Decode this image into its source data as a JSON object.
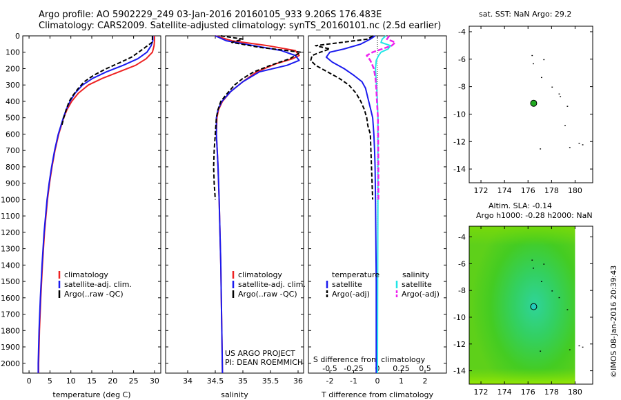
{
  "header": {
    "line1": "Argo profile: AO 5902229_249 03-Jan-2016 20160105_933 9.206S 176.483E",
    "line2": "Climatology: CARS2009. Satellite-adjusted climatology: synTS_20160101.nc (2.5d earlier)"
  },
  "colors": {
    "climatology": "#ee2222",
    "satellite": "#1a1aee",
    "argo": "#000000",
    "sat_salinity": "#22e6e6",
    "argo_salinity": "#ee22ee"
  },
  "depth_axis": {
    "min": 0,
    "max": 2060,
    "ticks": [
      0,
      100,
      200,
      300,
      400,
      500,
      600,
      700,
      800,
      900,
      1000,
      1100,
      1200,
      1300,
      1400,
      1500,
      1600,
      1700,
      1800,
      1900,
      2000
    ]
  },
  "legends": {
    "temperature": [
      "climatology",
      "satellite-adj. clim.",
      "Argo(..raw -QC)"
    ],
    "salinity": [
      "climatology",
      "satellite-adj. clim.",
      "Argo(..raw -QC)"
    ],
    "diff": {
      "temp_head": "temperature",
      "sal_head": "salinity",
      "items": [
        "satellite",
        "Argo(-adj)",
        "satellite",
        "Argo(-adj)"
      ]
    }
  },
  "project": {
    "line1": "US ARGO PROJECT",
    "line2": "PI: DEAN ROEMMICH"
  },
  "sst_title": "sat. SST: NaN Argo: 29.2",
  "sla_title": {
    "line1": "Altim. SLA: -0.14",
    "line2": "Argo h1000: -0.28 h2000: NaN"
  },
  "credit": "©IMOS 08-Jan-2016 20:39:43",
  "chart_data": [
    {
      "type": "line",
      "title": "",
      "xlabel": "temperature (deg C)",
      "ylabel": "depth",
      "xlim": [
        -1.5,
        31.5
      ],
      "ylim": [
        2060,
        0
      ],
      "xticks": [
        0,
        5,
        10,
        15,
        20,
        25,
        30
      ],
      "xtick_labels": [
        "0",
        "5",
        "10",
        "15",
        "20",
        "25",
        "30"
      ],
      "series": [
        {
          "name": "climatology",
          "depth": [
            0,
            30,
            60,
            100,
            140,
            180,
            220,
            260,
            300,
            350,
            400,
            450,
            500,
            600,
            700,
            800,
            900,
            1000,
            1200,
            1400,
            1600,
            1800,
            2000,
            2060
          ],
          "values": [
            30,
            30,
            29.9,
            29.5,
            28,
            25.5,
            21.5,
            17.5,
            14.2,
            11.8,
            10.2,
            9.1,
            8.3,
            7.1,
            6.2,
            5.5,
            4.9,
            4.4,
            3.7,
            3.2,
            2.8,
            2.5,
            2.3,
            2.3
          ]
        },
        {
          "name": "satellite-adj. clim.",
          "depth": [
            0,
            30,
            60,
            100,
            140,
            180,
            220,
            260,
            300,
            350,
            400,
            450,
            500,
            600,
            700,
            800,
            900,
            1000,
            1200,
            1400,
            1600,
            1800,
            2000,
            2060
          ],
          "values": [
            29.6,
            29.6,
            29.2,
            28.2,
            26,
            22.5,
            18.5,
            15.2,
            12.8,
            11,
            9.8,
            8.9,
            8.2,
            7,
            6.1,
            5.4,
            4.8,
            4.3,
            3.6,
            3.1,
            2.7,
            2.4,
            2.2,
            2.2
          ]
        },
        {
          "name": "Argo(..raw -QC)",
          "depth": [
            0,
            20,
            40,
            70,
            100,
            130,
            160,
            200,
            240,
            280,
            320,
            360,
            400,
            450,
            500,
            550
          ],
          "values": [
            29.5,
            29.5,
            29.4,
            27.8,
            26.2,
            24.5,
            22,
            18.5,
            15.5,
            13.2,
            11.8,
            10.6,
            9.6,
            8.9,
            8.3,
            7.8
          ]
        }
      ]
    },
    {
      "type": "line",
      "title": "",
      "xlabel": "salinity",
      "ylabel": "depth",
      "xlim": [
        33.6,
        36.1
      ],
      "ylim": [
        2060,
        0
      ],
      "xticks": [
        34,
        34.5,
        35,
        35.5,
        36
      ],
      "xtick_labels": [
        "34",
        "34.5",
        "35",
        "35.5",
        "36"
      ],
      "series": [
        {
          "name": "climatology",
          "depth": [
            0,
            30,
            60,
            90,
            120,
            140,
            170,
            220,
            280,
            340,
            400,
            450,
            500,
            600,
            800,
            1000,
            1400,
            2060
          ],
          "values": [
            34.5,
            34.8,
            35.45,
            35.95,
            36.02,
            35.9,
            35.6,
            35.25,
            35,
            34.78,
            34.63,
            34.56,
            34.53,
            34.52,
            34.55,
            34.57,
            34.6,
            34.63
          ]
        },
        {
          "name": "satellite-adj. clim.",
          "depth": [
            0,
            30,
            60,
            90,
            120,
            150,
            180,
            220,
            280,
            340,
            400,
            450,
            500,
            600,
            800,
            1000,
            1400,
            2060
          ],
          "values": [
            34.5,
            34.7,
            35.2,
            35.7,
            35.95,
            36.02,
            35.8,
            35.3,
            35,
            34.78,
            34.62,
            34.55,
            34.52,
            34.52,
            34.55,
            34.57,
            34.6,
            34.63
          ]
        },
        {
          "name": "Argo(..raw -QC)",
          "depth": [
            0,
            20,
            40,
            70,
            100,
            140,
            180,
            220,
            260,
            300,
            350,
            400,
            450,
            500,
            600,
            700,
            800,
            900,
            1000
          ],
          "values": [
            34.6,
            35,
            34.8,
            35.3,
            36.05,
            35.85,
            35.5,
            35.2,
            35,
            34.85,
            34.72,
            34.6,
            34.55,
            34.52,
            34.5,
            34.48,
            34.47,
            34.48,
            34.5
          ]
        }
      ]
    },
    {
      "type": "line",
      "title": "S difference from climatology",
      "xlabel": "T difference from climatology",
      "ylabel": "depth",
      "xlim": [
        -2.9,
        2.9
      ],
      "ylim": [
        2060,
        0
      ],
      "xticks": [
        -2,
        -1,
        0,
        1,
        2
      ],
      "xtick_labels": [
        "-2",
        "-1",
        "0",
        "1",
        "2"
      ],
      "top_ticks": [
        -0.5,
        -0.25,
        0,
        0.25,
        0.5
      ],
      "top_tick_labels": [
        "-0.5",
        "-0.25",
        "0",
        "0.25",
        "0.5"
      ],
      "series": [
        {
          "name": "temperature satellite",
          "depth": [
            0,
            20,
            50,
            80,
            100,
            130,
            160,
            200,
            240,
            280,
            320,
            380,
            440,
            500,
            600,
            700,
            800,
            1000,
            1500,
            2060
          ],
          "values": [
            -0.1,
            -0.3,
            -0.7,
            -1.4,
            -2.0,
            -2.15,
            -1.9,
            -1.4,
            -1.0,
            -0.65,
            -0.5,
            -0.4,
            -0.3,
            -0.2,
            -0.15,
            -0.12,
            -0.1,
            -0.08,
            -0.05,
            -0.05
          ]
        },
        {
          "name": "temperature Argo(-adj)",
          "depth": [
            0,
            20,
            40,
            60,
            80,
            100,
            120,
            150,
            180,
            220,
            260,
            300,
            350,
            400,
            450,
            500,
            550,
            600,
            800,
            1000
          ],
          "values": [
            -0.2,
            -0.4,
            -1.5,
            -2.6,
            -2.0,
            -2.4,
            -2.75,
            -2.8,
            -2.6,
            -2.1,
            -1.6,
            -1.2,
            -0.9,
            -0.7,
            -0.55,
            -0.45,
            -0.4,
            -0.3,
            -0.25,
            -0.2
          ]
        },
        {
          "name": "salinity satellite",
          "depth": [
            0,
            20,
            40,
            60,
            80,
            100,
            120,
            150,
            200,
            260,
            320,
            400,
            500,
            600,
            800,
            1000,
            1500,
            2060
          ],
          "values": [
            0.35,
            0.2,
            0.15,
            0.55,
            0.45,
            0.15,
            0.05,
            -0.05,
            -0.08,
            -0.06,
            -0.03,
            0,
            0.02,
            0.02,
            0.02,
            0.02,
            0.01,
            0
          ]
        },
        {
          "name": "salinity Argo(-adj)",
          "depth": [
            0,
            20,
            40,
            60,
            80,
            100,
            120,
            150,
            200,
            260,
            320,
            400,
            500,
            600,
            800,
            1000
          ],
          "values": [
            0.5,
            0.4,
            0.75,
            0.6,
            0.2,
            -0.2,
            -0.45,
            -0.3,
            -0.15,
            -0.08,
            -0.05,
            -0.02,
            0.02,
            0.03,
            0.04,
            0.04
          ]
        }
      ]
    },
    {
      "type": "scatter",
      "title": "sat. SST: NaN Argo: 29.2",
      "xlim": [
        171,
        181.5
      ],
      "ylim": [
        -15,
        -3.6
      ],
      "xticks": [
        172,
        174,
        176,
        178,
        180
      ],
      "xtick_labels": [
        "172",
        "174",
        "176",
        "178",
        "180"
      ],
      "yticks": [
        -4,
        -6,
        -8,
        -10,
        -12,
        -14
      ],
      "ytick_labels": [
        "-4",
        "-6",
        "-8",
        "-10",
        "-12",
        "-14"
      ],
      "float_position": {
        "lon": 176.48,
        "lat": -9.21
      },
      "coast_points": [
        [
          176.3,
          -5.7
        ],
        [
          176.4,
          -6.3
        ],
        [
          177.3,
          -6.0
        ],
        [
          177.1,
          -7.3
        ],
        [
          178.0,
          -8.0
        ],
        [
          178.6,
          -8.5
        ],
        [
          178.7,
          -8.7
        ],
        [
          179.3,
          -9.4
        ],
        [
          179.1,
          -10.8
        ],
        [
          177.0,
          -12.5
        ],
        [
          179.5,
          -12.4
        ],
        [
          180.3,
          -12.1
        ],
        [
          180.6,
          -12.2
        ]
      ]
    },
    {
      "type": "heatmap",
      "title": "Altim. SLA: -0.14 / Argo h1000: -0.28 h2000: NaN",
      "xlim": [
        171,
        181.5
      ],
      "ylim": [
        -15,
        -3.2
      ],
      "xticks": [
        172,
        174,
        176,
        178,
        180
      ],
      "xtick_labels": [
        "172",
        "174",
        "176",
        "178",
        "180"
      ],
      "yticks": [
        -4,
        -6,
        -8,
        -10,
        -12,
        -14
      ],
      "ytick_labels": [
        "-4",
        "-6",
        "-8",
        "-10",
        "-12",
        "-14"
      ],
      "data_extent_lon": [
        171,
        180
      ],
      "float_position": {
        "lon": 176.48,
        "lat": -9.21
      },
      "coast_points": [
        [
          176.3,
          -5.7
        ],
        [
          176.4,
          -6.3
        ],
        [
          177.3,
          -6.0
        ],
        [
          177.1,
          -7.3
        ],
        [
          178.0,
          -8.0
        ],
        [
          178.6,
          -8.5
        ],
        [
          179.3,
          -9.4
        ],
        [
          177.0,
          -12.5
        ],
        [
          179.5,
          -12.4
        ],
        [
          180.3,
          -12.1
        ],
        [
          180.6,
          -12.2
        ]
      ]
    }
  ]
}
